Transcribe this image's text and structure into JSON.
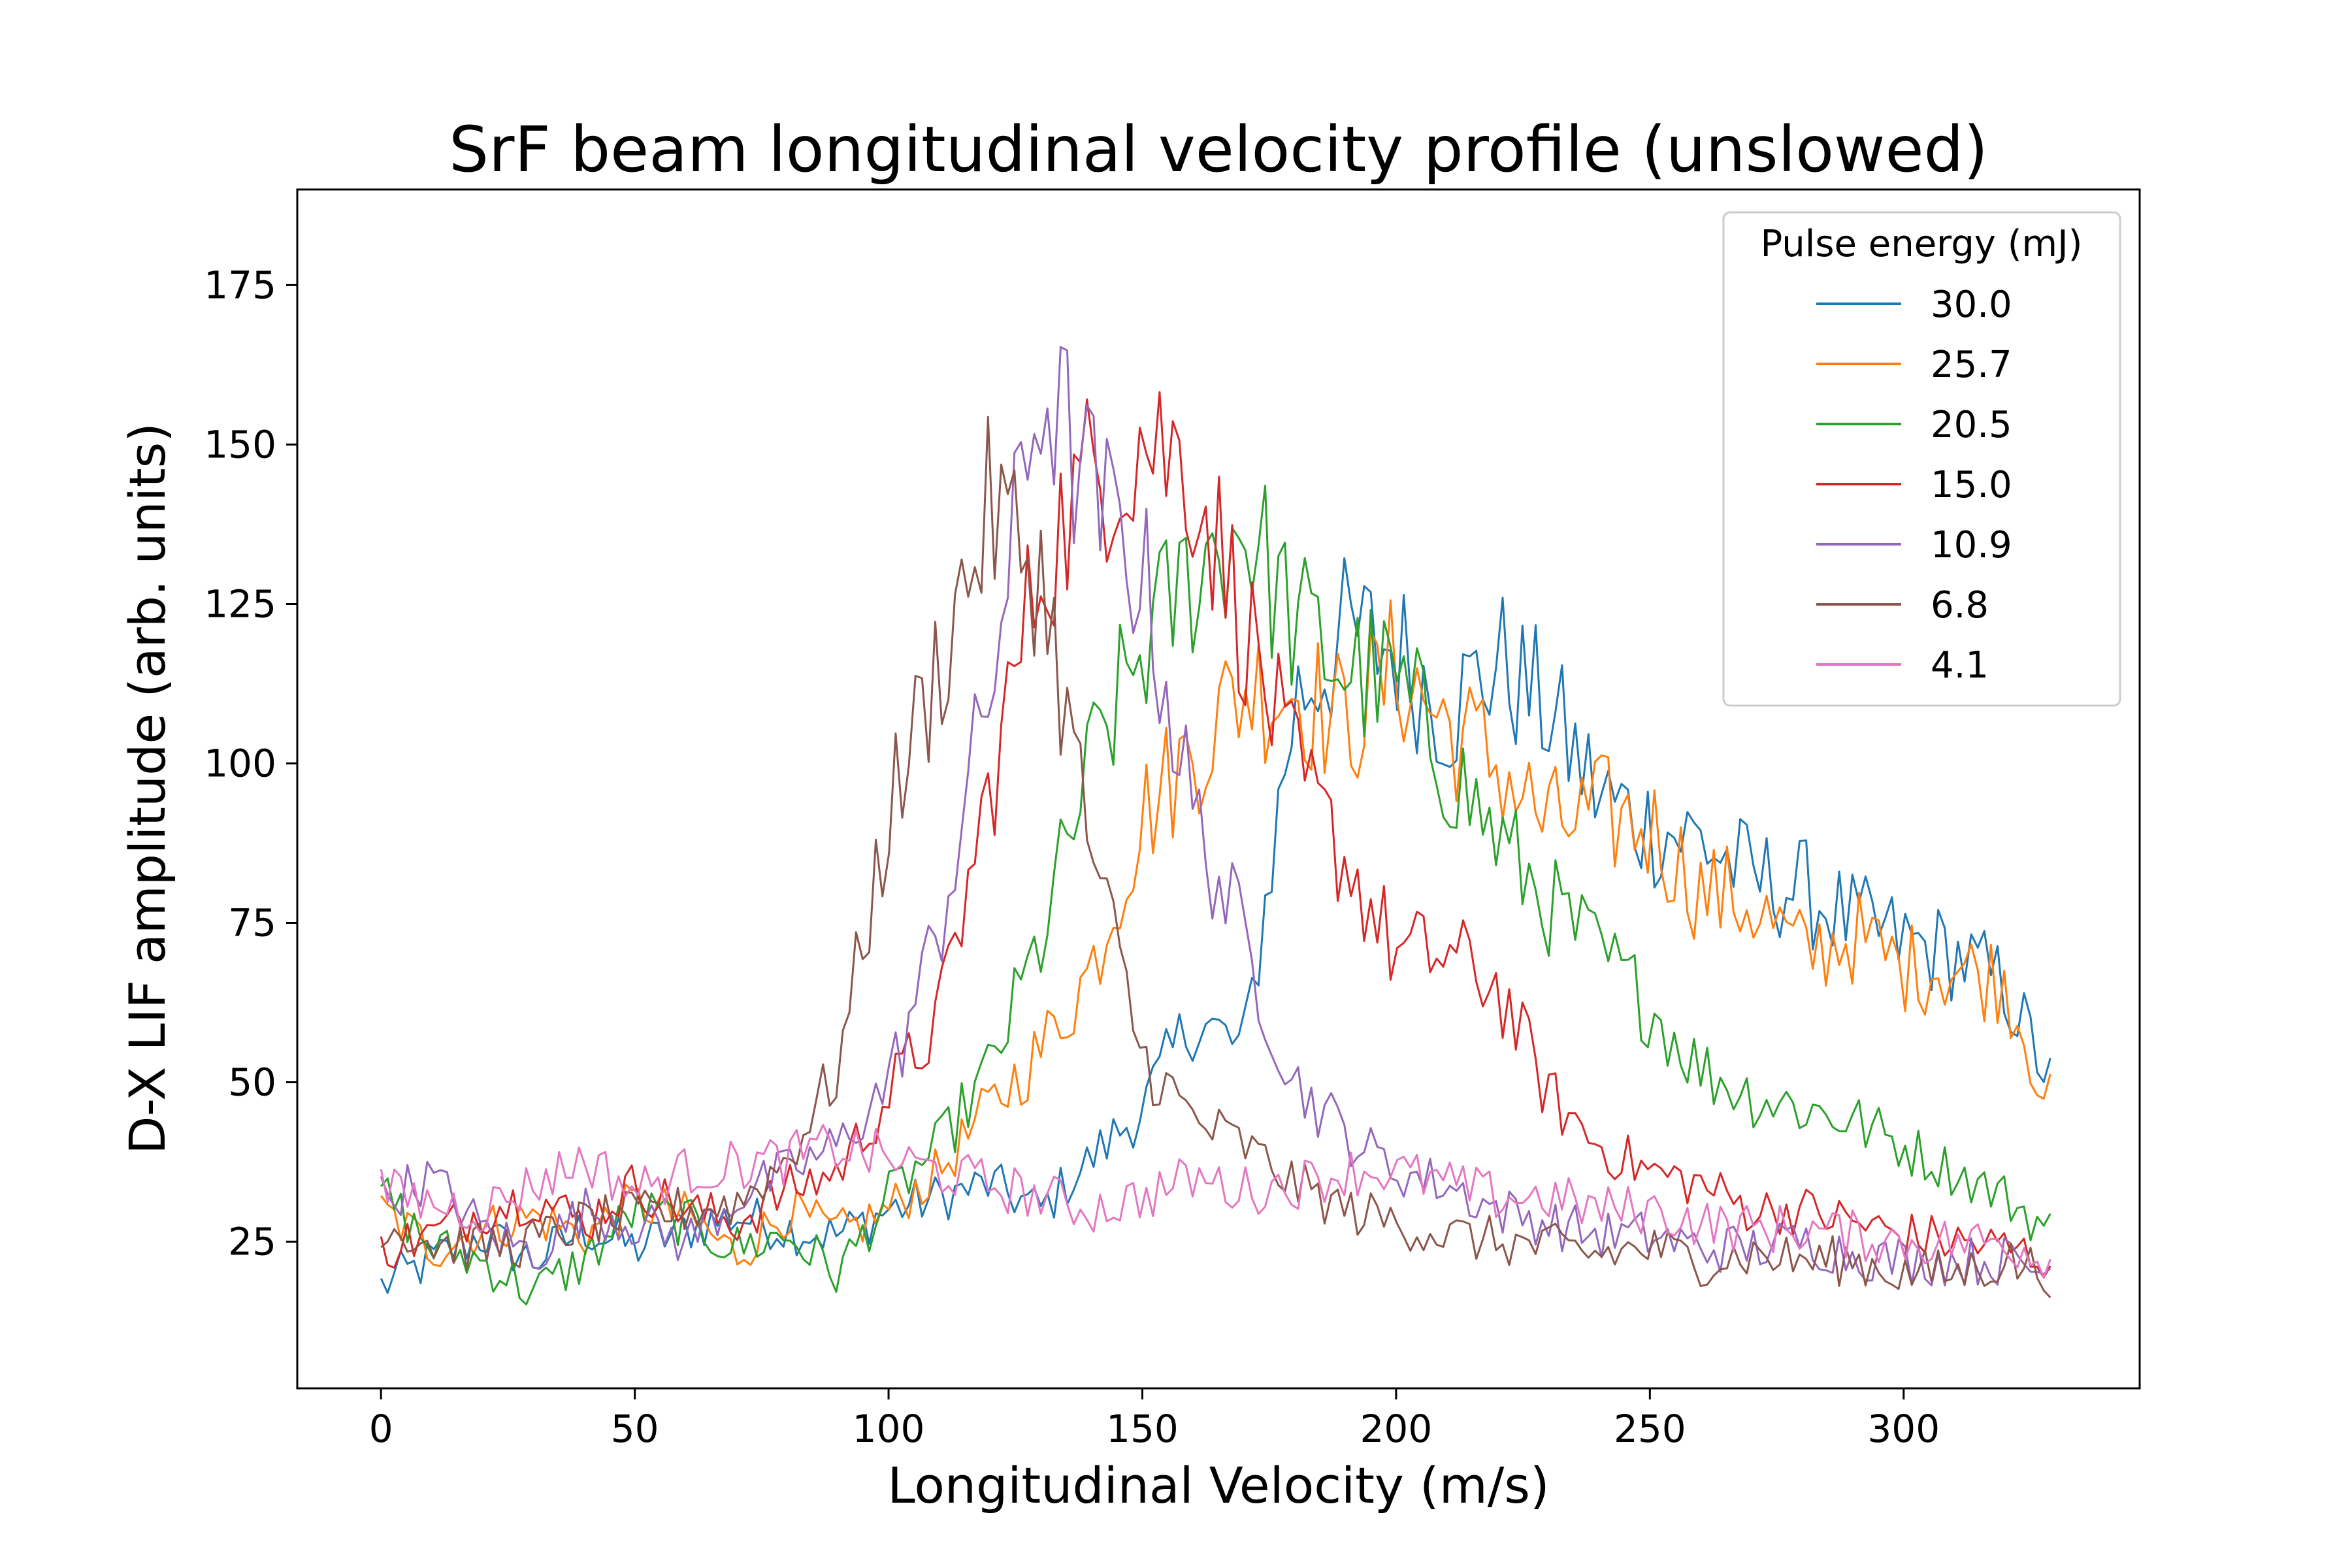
{
  "chart_data": {
    "type": "line",
    "title": "SrF beam longitudinal velocity profile (unslowed)",
    "xlabel": "Longitudinal Velocity (m/s)",
    "ylabel": "D-X LIF amplitude (arb. units)",
    "xlim": [
      -16.5,
      346.5
    ],
    "ylim": [
      2,
      190
    ],
    "xticks": [
      0,
      50,
      100,
      150,
      200,
      250,
      300
    ],
    "yticks": [
      25,
      50,
      75,
      100,
      125,
      150,
      175
    ],
    "grid": false,
    "legend": {
      "title": "Pulse energy (mJ)",
      "placement": "top-right"
    },
    "x_sample_step": 10,
    "series": [
      {
        "name": "30.0",
        "color": "#1f77b4",
        "x": [
          0,
          10,
          20,
          30,
          40,
          50,
          60,
          70,
          80,
          90,
          100,
          110,
          120,
          130,
          140,
          150,
          160,
          170,
          180,
          190,
          200,
          210,
          220,
          230,
          240,
          250,
          260,
          270,
          280,
          290,
          300,
          310,
          320,
          330
        ],
        "y": [
          18,
          22,
          26,
          22,
          27,
          24,
          27,
          29,
          27,
          26,
          30,
          32,
          34,
          30,
          38,
          46,
          60,
          55,
          110,
          120,
          118,
          108,
          116,
          108,
          95,
          90,
          88,
          82,
          80,
          75,
          72,
          70,
          65,
          48
        ]
      },
      {
        "name": "25.7",
        "color": "#ff7f0e",
        "x": [
          0,
          10,
          20,
          30,
          40,
          50,
          60,
          70,
          80,
          90,
          100,
          110,
          120,
          130,
          140,
          150,
          160,
          170,
          180,
          190,
          200,
          210,
          220,
          230,
          240,
          250,
          260,
          270,
          280,
          290,
          300,
          310,
          320,
          330
        ],
        "y": [
          30,
          24,
          27,
          29,
          26,
          31,
          29,
          23,
          30,
          26,
          30,
          36,
          46,
          55,
          68,
          92,
          102,
          112,
          112,
          106,
          115,
          106,
          100,
          90,
          92,
          90,
          80,
          78,
          70,
          73,
          68,
          68,
          66,
          44
        ]
      },
      {
        "name": "20.5",
        "color": "#2ca02c",
        "x": [
          0,
          10,
          20,
          30,
          40,
          50,
          60,
          70,
          80,
          90,
          100,
          110,
          120,
          130,
          140,
          150,
          160,
          170,
          180,
          190,
          200,
          210,
          220,
          230,
          240,
          250,
          260,
          270,
          280,
          290,
          300,
          310,
          320,
          330
        ],
        "y": [
          33,
          24,
          22,
          17,
          22,
          30,
          28,
          24,
          26,
          20,
          32,
          40,
          52,
          72,
          100,
          118,
          130,
          138,
          122,
          115,
          112,
          100,
          88,
          78,
          70,
          62,
          52,
          48,
          46,
          44,
          40,
          36,
          32,
          26
        ]
      },
      {
        "name": "15.0",
        "color": "#d62728",
        "x": [
          0,
          10,
          20,
          30,
          40,
          50,
          60,
          70,
          80,
          90,
          100,
          110,
          120,
          130,
          140,
          150,
          160,
          170,
          180,
          190,
          200,
          210,
          220,
          230,
          240,
          250,
          260,
          270,
          280,
          290,
          300,
          310,
          320,
          330
        ],
        "y": [
          24,
          26,
          30,
          32,
          28,
          34,
          30,
          28,
          33,
          36,
          48,
          60,
          96,
          132,
          145,
          152,
          146,
          122,
          98,
          85,
          70,
          70,
          65,
          48,
          40,
          36,
          34,
          30,
          30,
          28,
          26,
          25,
          24,
          22
        ]
      },
      {
        "name": "10.9",
        "color": "#9467bd",
        "x": [
          0,
          10,
          20,
          30,
          40,
          50,
          60,
          70,
          80,
          90,
          100,
          110,
          120,
          130,
          140,
          150,
          160,
          170,
          180,
          190,
          200,
          210,
          220,
          230,
          240,
          250,
          260,
          270,
          280,
          290,
          300,
          310,
          320,
          330
        ],
        "y": [
          32,
          35,
          27,
          23,
          30,
          28,
          25,
          32,
          36,
          40,
          50,
          74,
          112,
          160,
          142,
          130,
          92,
          72,
          50,
          42,
          36,
          34,
          30,
          28,
          26,
          26,
          24,
          24,
          25,
          23,
          22,
          22,
          22,
          20
        ]
      },
      {
        "name": "6.8",
        "color": "#8c564b",
        "x": [
          0,
          10,
          20,
          30,
          40,
          50,
          60,
          70,
          80,
          90,
          100,
          110,
          120,
          130,
          140,
          150,
          160,
          170,
          180,
          190,
          200,
          210,
          220,
          230,
          240,
          250,
          260,
          270,
          280,
          290,
          300,
          310,
          320,
          330
        ],
        "y": [
          28,
          25,
          24,
          25,
          28,
          29,
          30,
          31,
          38,
          52,
          92,
          116,
          140,
          130,
          86,
          54,
          44,
          40,
          34,
          30,
          28,
          26,
          25,
          24,
          23,
          24,
          22,
          23,
          22,
          22,
          20,
          20,
          22,
          20
        ]
      },
      {
        "name": "4.1",
        "color": "#e377c2",
        "x": [
          0,
          10,
          20,
          30,
          40,
          50,
          60,
          70,
          80,
          90,
          100,
          110,
          120,
          130,
          140,
          150,
          160,
          170,
          180,
          190,
          200,
          210,
          220,
          230,
          240,
          250,
          260,
          270,
          280,
          290,
          300,
          310,
          320,
          330
        ],
        "y": [
          33,
          31,
          30,
          34,
          38,
          33,
          36,
          37,
          38,
          40,
          38,
          36,
          34,
          32,
          30,
          32,
          35,
          33,
          34,
          36,
          36,
          34,
          32,
          32,
          30,
          30,
          28,
          27,
          27,
          26,
          25,
          25,
          25,
          22
        ]
      }
    ]
  }
}
